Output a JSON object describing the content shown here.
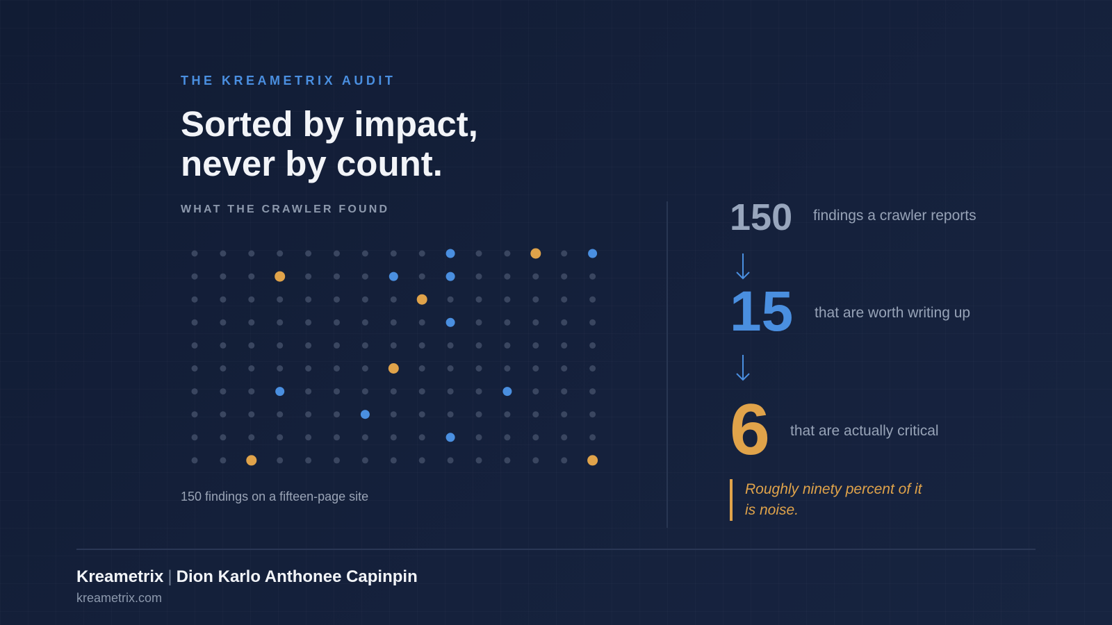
{
  "eyebrow": "THE KREAMETRIX AUDIT",
  "headline": {
    "line1": "Sorted by impact,",
    "line2": "never by count."
  },
  "section_label": "WHAT THE CRAWLER FOUND",
  "caption": "150 findings on a fifteen-page site",
  "colors": {
    "background": "#131e37",
    "accent_blue": "#4a8fe0",
    "accent_gold": "#e0a34a",
    "dot_neutral": "#3a4660",
    "muted_text": "#97a3b7"
  },
  "dot_grid": {
    "columns": 15,
    "rows": 10,
    "total": 150,
    "highlighted": [
      {
        "row": 0,
        "col": 9,
        "kind": "blue"
      },
      {
        "row": 0,
        "col": 12,
        "kind": "gold"
      },
      {
        "row": 0,
        "col": 14,
        "kind": "blue"
      },
      {
        "row": 1,
        "col": 3,
        "kind": "gold"
      },
      {
        "row": 1,
        "col": 7,
        "kind": "blue"
      },
      {
        "row": 1,
        "col": 9,
        "kind": "blue"
      },
      {
        "row": 2,
        "col": 8,
        "kind": "gold"
      },
      {
        "row": 3,
        "col": 9,
        "kind": "blue"
      },
      {
        "row": 5,
        "col": 7,
        "kind": "gold"
      },
      {
        "row": 6,
        "col": 3,
        "kind": "blue"
      },
      {
        "row": 6,
        "col": 11,
        "kind": "blue"
      },
      {
        "row": 7,
        "col": 6,
        "kind": "blue"
      },
      {
        "row": 8,
        "col": 9,
        "kind": "blue"
      },
      {
        "row": 9,
        "col": 2,
        "kind": "gold"
      },
      {
        "row": 9,
        "col": 14,
        "kind": "gold"
      }
    ]
  },
  "funnel": [
    {
      "value": "150",
      "label": "findings a crawler reports"
    },
    {
      "value": "15",
      "label": "that are worth writing up"
    },
    {
      "value": "6",
      "label": "that are actually critical"
    }
  ],
  "icons": {
    "arrow": "arrow-down-icon"
  },
  "quote": {
    "line1": "Roughly ninety percent of it",
    "line2": "is noise."
  },
  "footer": {
    "brand": "Kreametrix",
    "separator": "|",
    "author": "Dion Karlo Anthonee Capinpin",
    "url": "kreametrix.com"
  }
}
